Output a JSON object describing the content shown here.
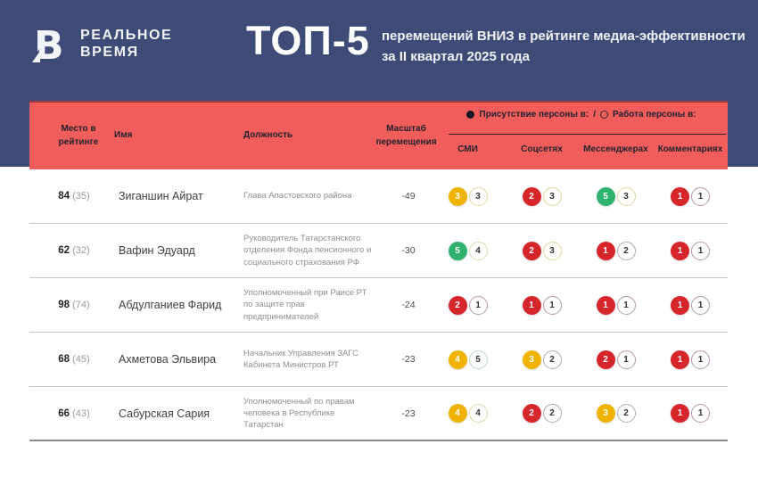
{
  "brand": {
    "logo_letter": "В",
    "name_line1": "РЕАЛЬНОЕ",
    "name_line2": "ВРЕМЯ"
  },
  "header": {
    "title": "ТОП-5",
    "subtitle": "перемещений ВНИЗ в рейтинге медиа-эффективности\nза II квартал 2025 года"
  },
  "colors": {
    "band_blue": "#3d4b76",
    "panel_red": "#f15d5b",
    "score_red": "#d6252b",
    "score_yellow": "#f0b400",
    "score_green": "#2eb26e"
  },
  "table": {
    "columns": {
      "rank": "Место в\nрейтинге",
      "name": "Имя",
      "position": "Должность",
      "scale": "Масштаб\nперемещения"
    },
    "legend": {
      "presence_label": "Присутствие персоны в:",
      "separator": "/",
      "work_label": "Работа персоны в:"
    },
    "channels": [
      "СМИ",
      "Соцсетях",
      "Мессенджерах",
      "Комментариях"
    ],
    "rows": [
      {
        "rank": "84",
        "prev": "(35)",
        "name": "Зиганшин Айрат",
        "position": "Глава Апастовского района",
        "scale": "-49",
        "scores": [
          {
            "presence": "3",
            "presence_color": "#f0b400",
            "work": "3",
            "work_ring": "#e0d79e"
          },
          {
            "presence": "2",
            "presence_color": "#d6252b",
            "work": "3",
            "work_ring": "#e0d79e"
          },
          {
            "presence": "5",
            "presence_color": "#2eb26e",
            "work": "3",
            "work_ring": "#e0d79e"
          },
          {
            "presence": "1",
            "presence_color": "#d6252b",
            "work": "1",
            "work_ring": "#b89b9b"
          }
        ]
      },
      {
        "rank": "62",
        "prev": "(32)",
        "name": "Вафин Эдуард",
        "position": "Руководитель Татарстанского отделения Фонда пенсионного и социального страхования РФ",
        "scale": "-30",
        "scores": [
          {
            "presence": "5",
            "presence_color": "#2eb26e",
            "work": "4",
            "work_ring": "#dfd8b0"
          },
          {
            "presence": "2",
            "presence_color": "#d6252b",
            "work": "3",
            "work_ring": "#e0d79e"
          },
          {
            "presence": "1",
            "presence_color": "#d6252b",
            "work": "2",
            "work_ring": "#b0a8b0"
          },
          {
            "presence": "1",
            "presence_color": "#d6252b",
            "work": "1",
            "work_ring": "#b89b9b"
          }
        ]
      },
      {
        "rank": "98",
        "prev": "(74)",
        "name": "Абдулганиев Фарид",
        "position": "Уполномоченный при Раисе РТ по защите прав предпринимателей",
        "scale": "-24",
        "scores": [
          {
            "presence": "2",
            "presence_color": "#d6252b",
            "work": "1",
            "work_ring": "#b49a9a"
          },
          {
            "presence": "1",
            "presence_color": "#d6252b",
            "work": "1",
            "work_ring": "#b49a9a"
          },
          {
            "presence": "1",
            "presence_color": "#d6252b",
            "work": "1",
            "work_ring": "#b49a9a"
          },
          {
            "presence": "1",
            "presence_color": "#d6252b",
            "work": "1",
            "work_ring": "#b49a9a"
          }
        ]
      },
      {
        "rank": "68",
        "prev": "(45)",
        "name": "Ахметова Эльвира",
        "position": "Начальник Управления ЗАГС Кабинета Министров РТ",
        "scale": "-23",
        "scores": [
          {
            "presence": "4",
            "presence_color": "#f0b400",
            "work": "5",
            "work_ring": "#bed4ca"
          },
          {
            "presence": "3",
            "presence_color": "#f0b400",
            "work": "2",
            "work_ring": "#b0a8b0"
          },
          {
            "presence": "2",
            "presence_color": "#d6252b",
            "work": "1",
            "work_ring": "#b49a9a"
          },
          {
            "presence": "1",
            "presence_color": "#d6252b",
            "work": "1",
            "work_ring": "#b49a9a"
          }
        ]
      },
      {
        "rank": "66",
        "prev": "(43)",
        "name": "Сабурская Сария",
        "position": "Уполномоченный по правам человека в Республике Татарстан",
        "scale": "-23",
        "scores": [
          {
            "presence": "4",
            "presence_color": "#f0b400",
            "work": "4",
            "work_ring": "#dfd8b0"
          },
          {
            "presence": "2",
            "presence_color": "#d6252b",
            "work": "2",
            "work_ring": "#b0a8b0"
          },
          {
            "presence": "3",
            "presence_color": "#f0b400",
            "work": "2",
            "work_ring": "#b0a8b0"
          },
          {
            "presence": "1",
            "presence_color": "#d6252b",
            "work": "1",
            "work_ring": "#b49a9a"
          }
        ]
      }
    ]
  },
  "chart_data": {
    "type": "table",
    "title": "ТОП-5 перемещений ВНИЗ в рейтинге медиа-эффективности за II квартал 2025 года",
    "columns": [
      "Место в рейтинге",
      "Имя",
      "Должность",
      "Масштаб перемещения",
      "СМИ (присутствие/работа)",
      "Соцсетях (присутствие/работа)",
      "Мессенджерах (присутствие/работа)",
      "Комментариях (присутствие/работа)"
    ],
    "rows": [
      [
        "84 (35)",
        "Зиганшин Айрат",
        "Глава Апастовского района",
        -49,
        "3/3",
        "2/3",
        "5/3",
        "1/1"
      ],
      [
        "62 (32)",
        "Вафин Эдуард",
        "Руководитель Татарстанского отделения Фонда пенсионного и социального страхования РФ",
        -30,
        "5/4",
        "2/3",
        "1/2",
        "1/1"
      ],
      [
        "98 (74)",
        "Абдулганиев Фарид",
        "Уполномоченный при Раисе РТ по защите прав предпринимателей",
        -24,
        "2/1",
        "1/1",
        "1/1",
        "1/1"
      ],
      [
        "68 (45)",
        "Ахметова Эльвира",
        "Начальник Управления ЗАГС Кабинета Министров РТ",
        -23,
        "4/5",
        "3/2",
        "2/1",
        "1/1"
      ],
      [
        "66 (43)",
        "Сабурская Сария",
        "Уполномоченный по правам человека в Республике Татарстан",
        -23,
        "4/4",
        "2/2",
        "3/2",
        "1/1"
      ]
    ]
  }
}
